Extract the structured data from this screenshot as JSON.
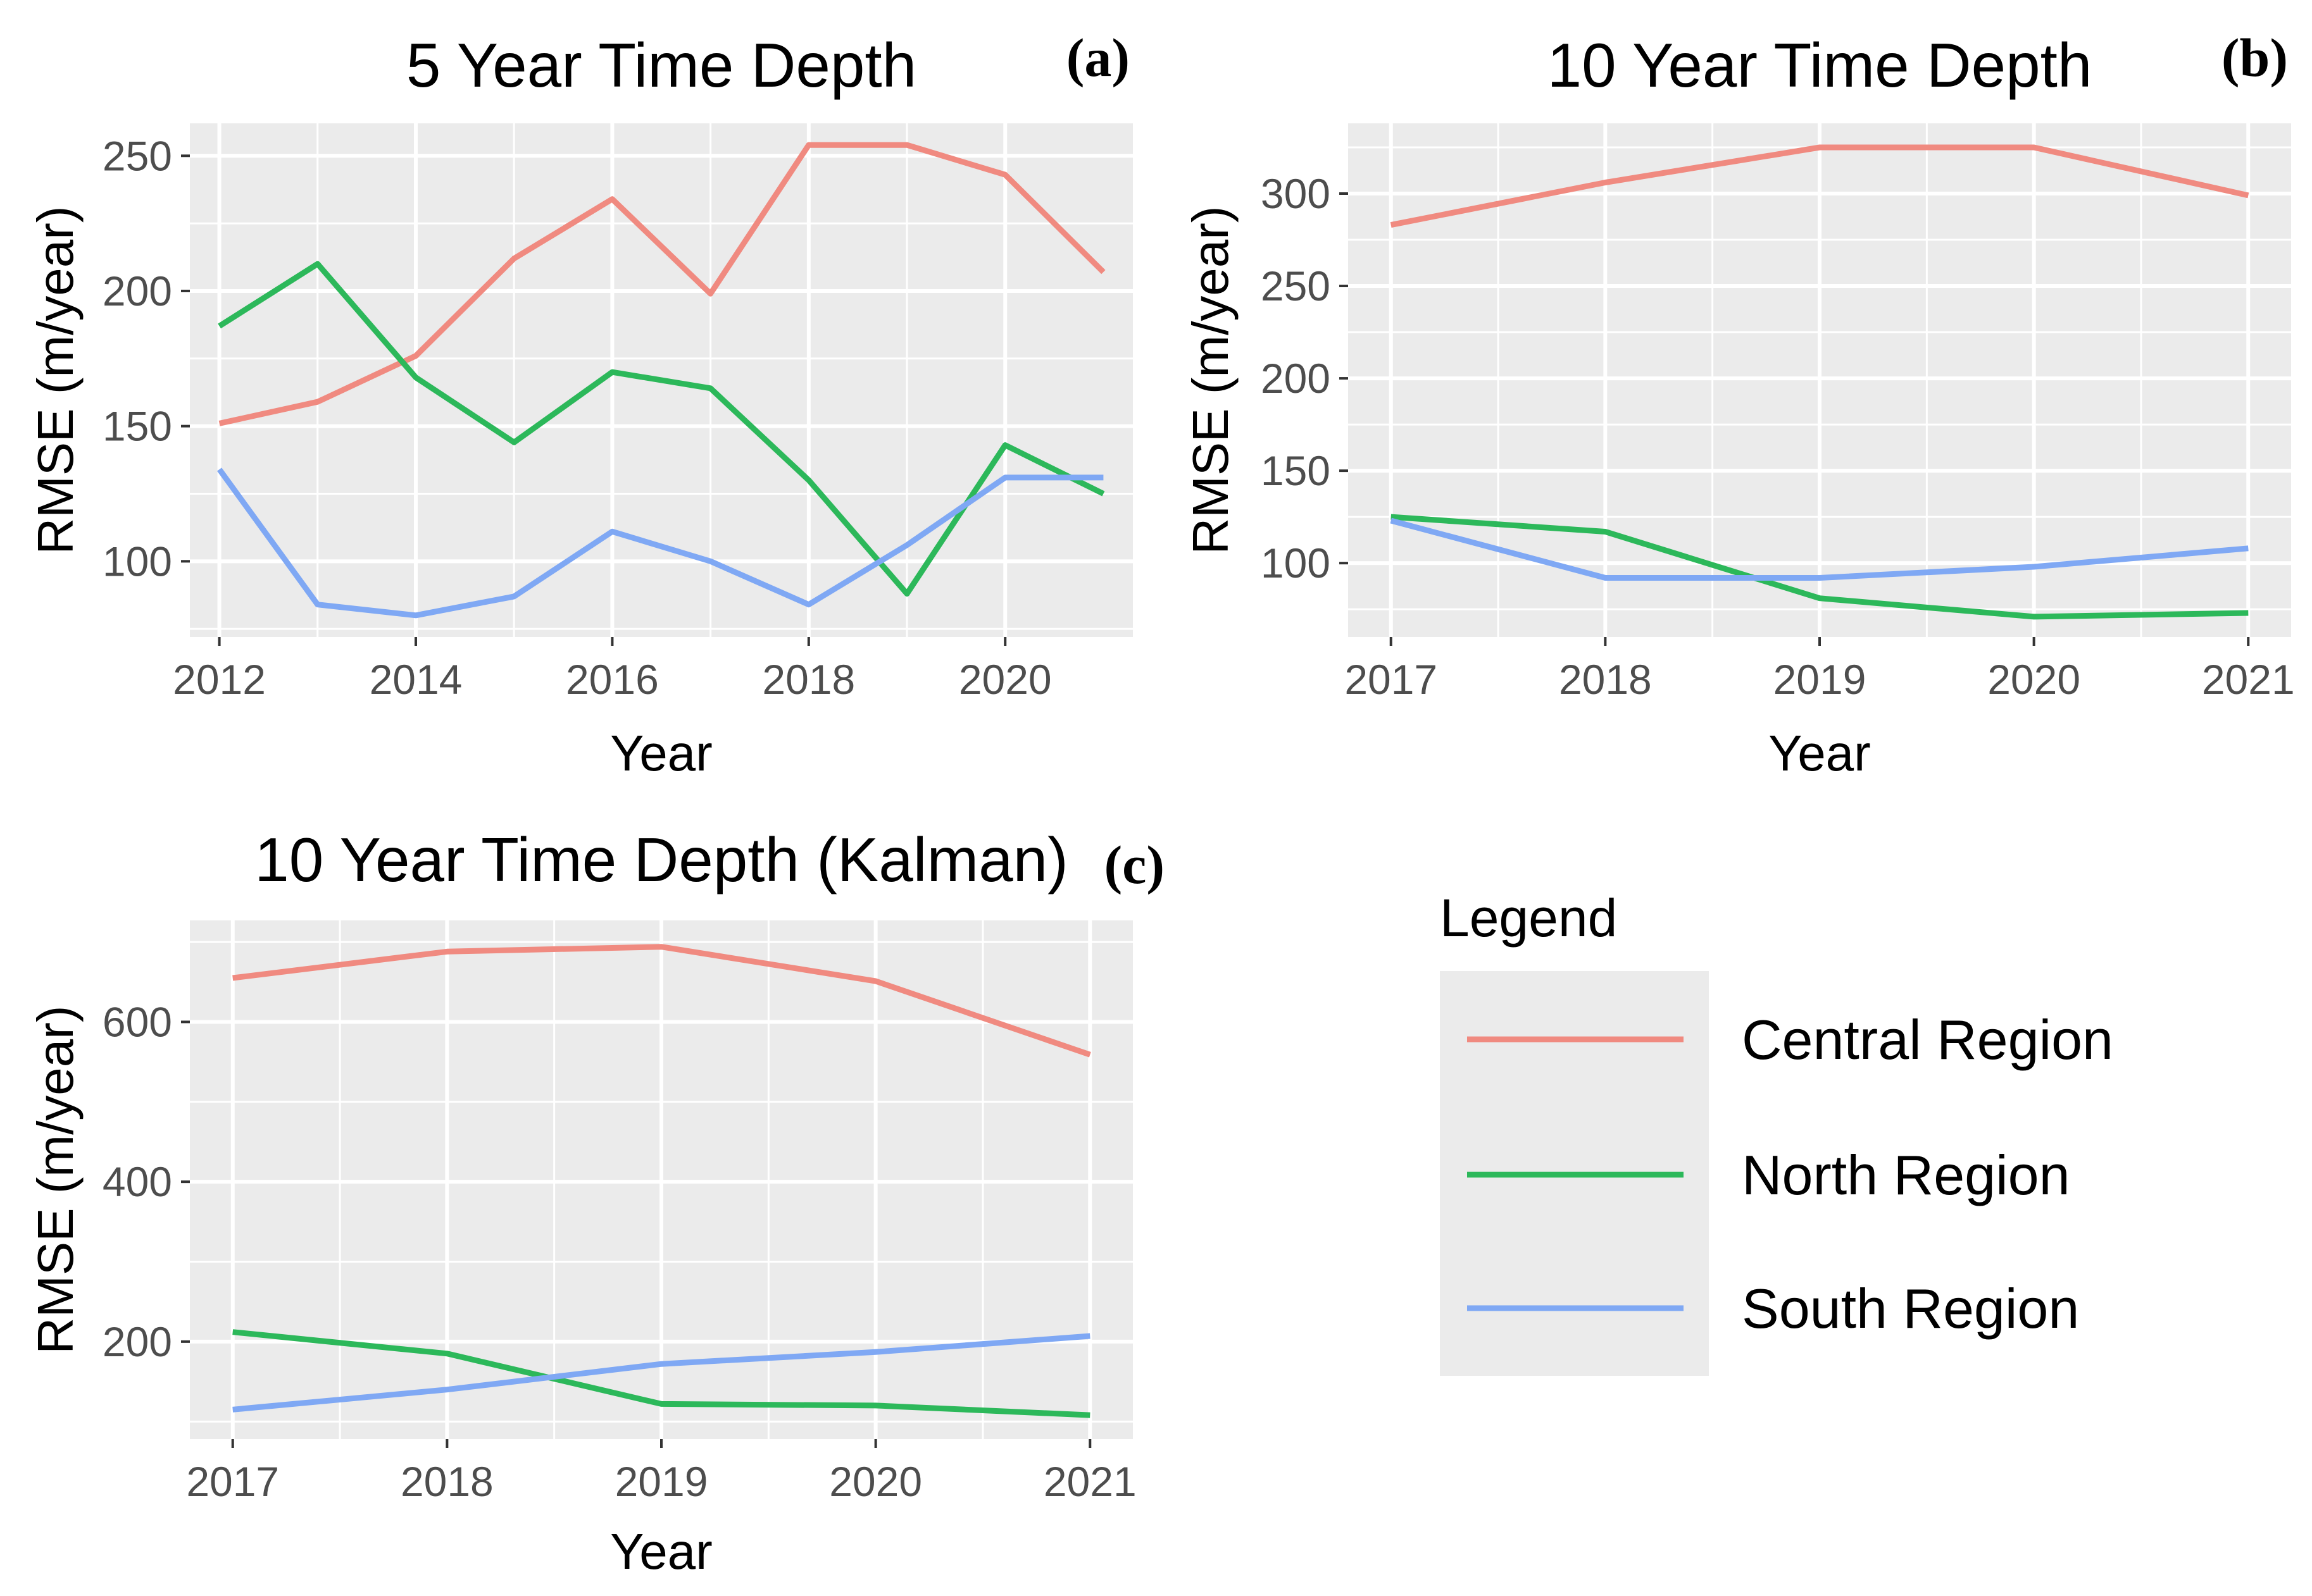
{
  "legend": {
    "title": "Legend",
    "items": [
      {
        "name": "Central Region",
        "color": "#f08a80"
      },
      {
        "name": "North Region",
        "color": "#2cb85a"
      },
      {
        "name": "South Region",
        "color": "#7fa8f4"
      }
    ]
  },
  "chart_data": [
    {
      "type": "line",
      "panel_label": "(a)",
      "title": "5 Year Time Depth",
      "xlabel": "Year",
      "ylabel": "RMSE (m/year)",
      "xlim": [
        2011.7,
        2021.3
      ],
      "ylim": [
        72,
        262
      ],
      "xticks": [
        2012,
        2014,
        2016,
        2018,
        2020
      ],
      "yticks": [
        100,
        150,
        200,
        250
      ],
      "x": [
        2012,
        2013,
        2014,
        2015,
        2016,
        2017,
        2018,
        2019,
        2020,
        2021
      ],
      "series": [
        {
          "name": "Central Region",
          "values": [
            151,
            159,
            176,
            212,
            234,
            199,
            254,
            254,
            243,
            207
          ]
        },
        {
          "name": "North Region",
          "values": [
            187,
            210,
            168,
            144,
            170,
            164,
            130,
            88,
            143,
            125
          ]
        },
        {
          "name": "South Region",
          "values": [
            134,
            84,
            80,
            87,
            111,
            100,
            84,
            106,
            131,
            131
          ]
        }
      ]
    },
    {
      "type": "line",
      "panel_label": "(b)",
      "title": "10 Year Time Depth",
      "xlabel": "Year",
      "ylabel": "RMSE (m/year)",
      "xlim": [
        2016.8,
        2021.2
      ],
      "ylim": [
        60,
        338
      ],
      "xticks": [
        2017,
        2018,
        2019,
        2020,
        2021
      ],
      "yticks": [
        100,
        150,
        200,
        250,
        300
      ],
      "x": [
        2017,
        2018,
        2019,
        2020,
        2021
      ],
      "series": [
        {
          "name": "Central Region",
          "values": [
            283,
            306,
            325,
            325,
            299
          ]
        },
        {
          "name": "North Region",
          "values": [
            125,
            117,
            81,
            71,
            73
          ]
        },
        {
          "name": "South Region",
          "values": [
            123,
            92,
            92,
            98,
            108
          ]
        }
      ]
    },
    {
      "type": "line",
      "panel_label": "(c)",
      "title": "10 Year Time Depth (Kalman)",
      "xlabel": "Year",
      "ylabel": "RMSE (m/year)",
      "xlim": [
        2016.8,
        2021.2
      ],
      "ylim": [
        78,
        727
      ],
      "xticks": [
        2017,
        2018,
        2019,
        2020,
        2021
      ],
      "yticks": [
        200,
        400,
        600
      ],
      "x": [
        2017,
        2018,
        2019,
        2020,
        2021
      ],
      "series": [
        {
          "name": "Central Region",
          "values": [
            655,
            688,
            694,
            651,
            559
          ]
        },
        {
          "name": "North Region",
          "values": [
            212,
            185,
            122,
            120,
            108
          ]
        },
        {
          "name": "South Region",
          "values": [
            115,
            140,
            172,
            187,
            207
          ]
        }
      ]
    }
  ]
}
